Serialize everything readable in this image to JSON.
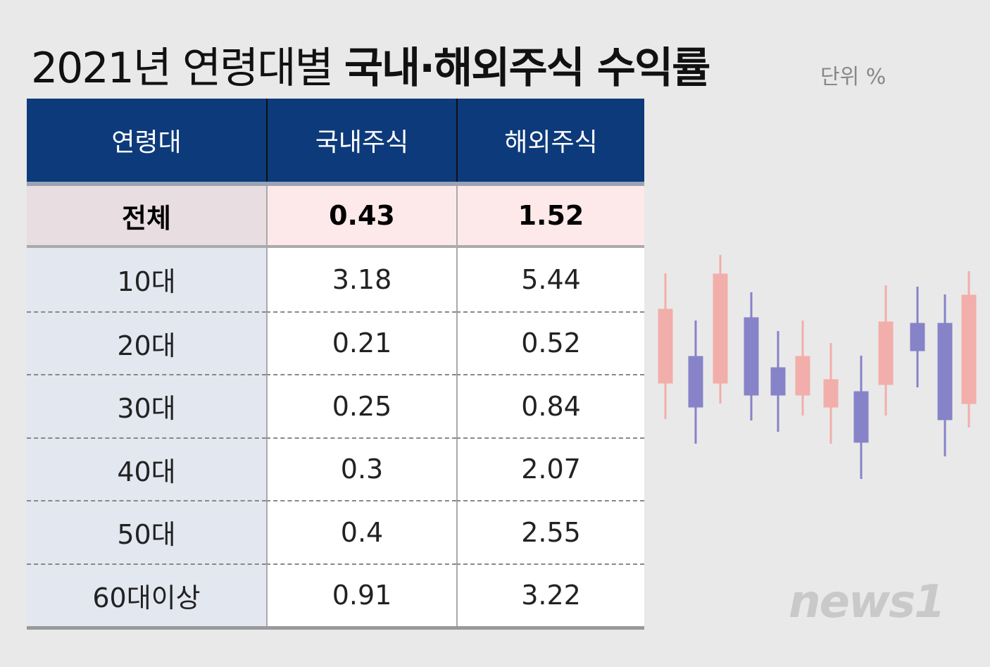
{
  "header": {
    "title_light": "2021년 연령대별",
    "title_bold": "국내·해외주식 수익률",
    "unit": "단위 %"
  },
  "table": {
    "columns": [
      "연령대",
      "국내주식",
      "해외주식"
    ],
    "rows": [
      [
        "전체",
        "0.43",
        "1.52"
      ],
      [
        "10대",
        "3.18",
        "5.44"
      ],
      [
        "20대",
        "0.21",
        "0.52"
      ],
      [
        "30대",
        "0.25",
        "0.84"
      ],
      [
        "40대",
        "0.3",
        "2.07"
      ],
      [
        "50대",
        "0.4",
        "2.55"
      ],
      [
        "60대이상",
        "0.91",
        "3.22"
      ]
    ]
  },
  "brand": "news1"
}
